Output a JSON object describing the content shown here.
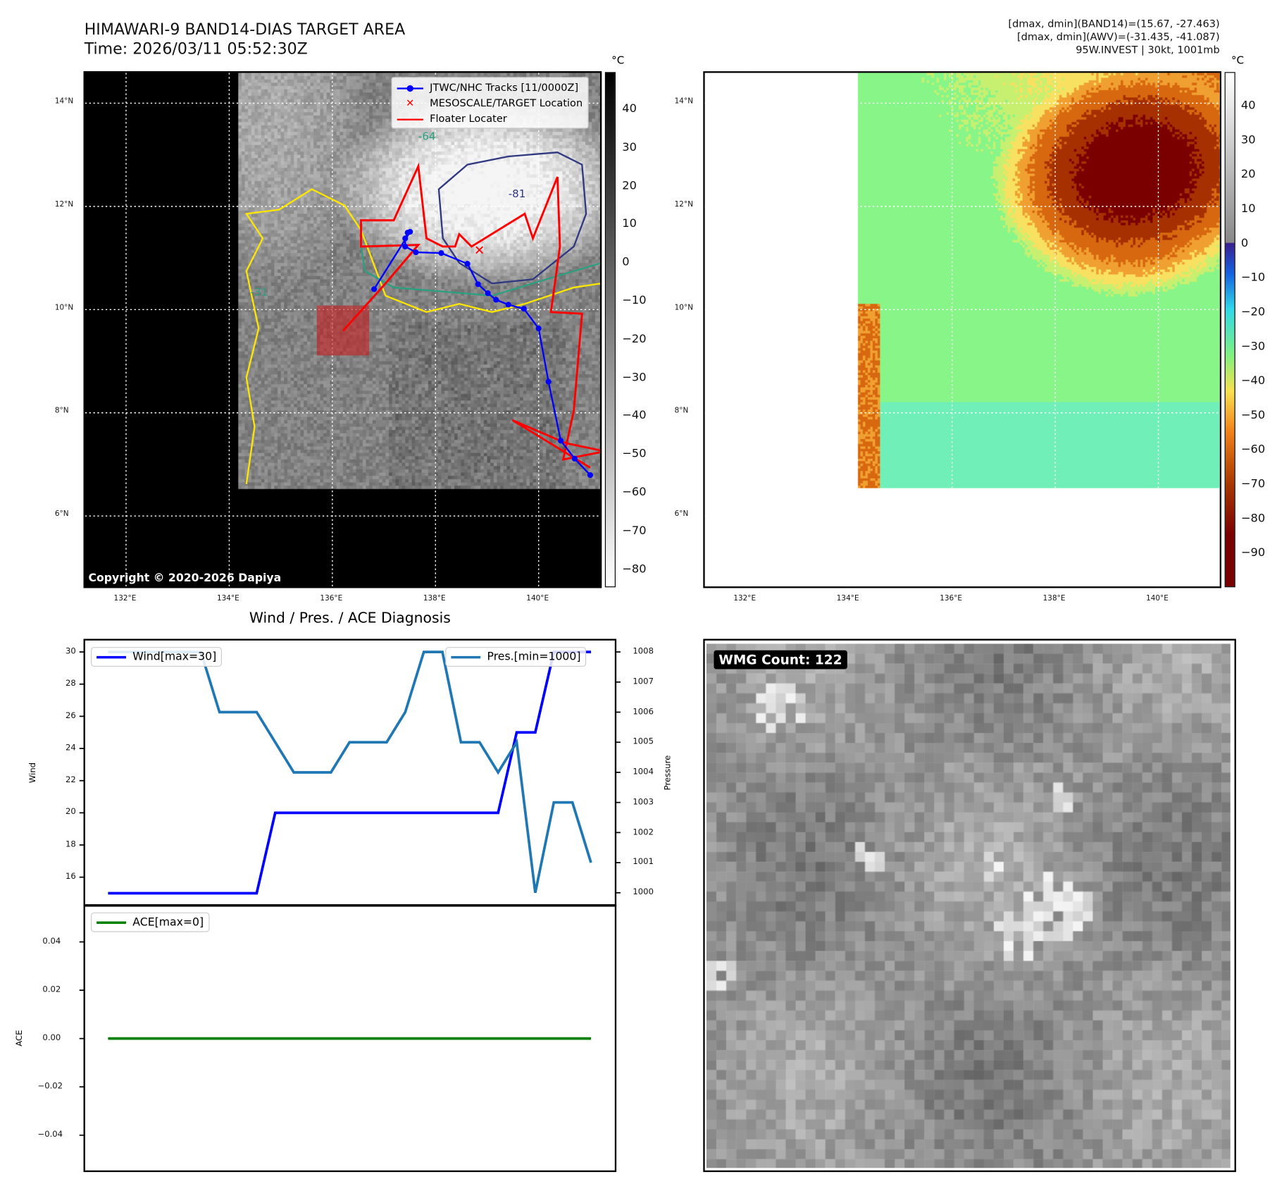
{
  "header": {
    "title": "HIMAWARI-9 BAND14-DIAS TARGET AREA",
    "time": "Time: 2026/03/11 05:52:30Z",
    "info_line1": "[dmax, dmin](BAND14)=(15.67, -27.463)",
    "info_line2": "[dmax, dmin](AWV)=(-31.435, -41.087)",
    "info_line3": "95W.INVEST | 30kt, 1001mb"
  },
  "maps": {
    "lat_labels": [
      "14°N",
      "12°N",
      "10°N",
      "8°N",
      "6°N"
    ],
    "lon_labels": [
      "132°E",
      "134°E",
      "136°E",
      "138°E",
      "140°E"
    ],
    "unit": "°C",
    "colorbar1_ticks": [
      "40",
      "30",
      "20",
      "10",
      "0",
      "−10",
      "−20",
      "−30",
      "−40",
      "−50",
      "−60",
      "−70",
      "−80"
    ],
    "colorbar2_ticks": [
      "40",
      "30",
      "20",
      "10",
      "0",
      "−10",
      "−20",
      "−30",
      "−40",
      "−50",
      "−60",
      "−70",
      "−80",
      "−90"
    ],
    "legend": {
      "tracks": "JTWC/NHC Tracks [11/0000Z]",
      "target": "MESOSCALE/TARGET Location",
      "floater": "Floater Locater"
    },
    "contour_labels": [
      "-64",
      "-81",
      "-31"
    ],
    "copyright": "Copyright © 2020-2026 Dapiya",
    "colors": {
      "track": "#0000ff",
      "floater": "#ff0000",
      "target": "#ff0000"
    }
  },
  "wmg": {
    "label": "WMG Count: 122"
  },
  "chart_data": [
    {
      "type": "line",
      "title": "Wind / Pres. / ACE Diagnosis",
      "x": [
        0,
        1,
        2,
        3,
        4,
        5,
        6,
        7,
        8,
        9,
        10,
        11,
        12,
        13,
        14,
        15,
        16,
        17,
        18,
        19,
        20,
        21,
        22,
        23,
        24,
        25,
        26
      ],
      "ylabel": "Wind",
      "ylabel_right": "Pressure",
      "ylim": [
        14.6,
        31.6
      ],
      "yticks": [
        "30",
        "28",
        "26",
        "24",
        "22",
        "20",
        "18",
        "16"
      ],
      "ylim_right": [
        999.6,
        1008.4
      ],
      "yticks_right": [
        "1008",
        "1007",
        "1006",
        "1005",
        "1004",
        "1003",
        "1002",
        "1001",
        "1000"
      ],
      "series": [
        {
          "name": "Wind[max=30]",
          "axis": "left",
          "color": "#0000ff",
          "values": [
            15,
            15,
            15,
            15,
            15,
            15,
            15,
            15,
            15,
            20,
            20,
            20,
            20,
            20,
            20,
            20,
            20,
            20,
            20,
            20,
            20,
            20,
            25,
            25,
            30,
            30,
            30
          ]
        },
        {
          "name": "Pres.[min=1000]",
          "axis": "right",
          "color": "#1f77b4",
          "values": [
            1008,
            1008,
            1008,
            1008,
            1008,
            1008,
            1006,
            1006,
            1006,
            1005,
            1004,
            1004,
            1004,
            1005,
            1005,
            1005,
            1006,
            1008,
            1008,
            1005,
            1005,
            1004,
            1005,
            1000,
            1003,
            1003,
            1001
          ]
        }
      ]
    },
    {
      "type": "line",
      "ylabel": "ACE",
      "ylim": [
        -0.055,
        0.055
      ],
      "yticks": [
        "0.04",
        "0.02",
        "0.00",
        "−0.02",
        "−0.04"
      ],
      "series": [
        {
          "name": "ACE[max=0]",
          "color": "#008000",
          "values": [
            0,
            0,
            0,
            0,
            0,
            0,
            0,
            0,
            0,
            0,
            0,
            0,
            0,
            0,
            0,
            0,
            0,
            0,
            0,
            0,
            0,
            0,
            0,
            0,
            0,
            0,
            0
          ]
        }
      ]
    }
  ]
}
